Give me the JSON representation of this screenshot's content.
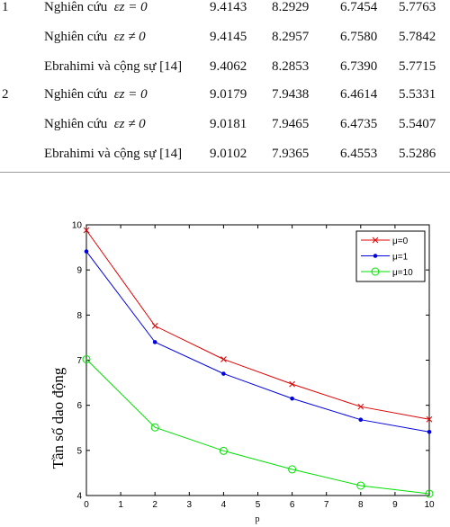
{
  "table": {
    "rows": [
      {
        "case": "1",
        "method_text": "Nghiên cứu",
        "condition": "εz = 0",
        "values": [
          "9.4143",
          "8.2929",
          "6.7454",
          "5.7763"
        ]
      },
      {
        "case": "",
        "method_text": "Nghiên cứu",
        "condition": "εz ≠ 0",
        "values": [
          "9.4145",
          "8.2957",
          "6.7580",
          "5.7842"
        ]
      },
      {
        "case": "",
        "method_text": "Ebrahimi và cộng sự [14]",
        "condition": "",
        "values": [
          "9.4062",
          "8.2853",
          "6.7390",
          "5.7715"
        ]
      },
      {
        "case": "2",
        "method_text": "Nghiên cứu",
        "condition": "εz = 0",
        "values": [
          "9.0179",
          "7.9438",
          "6.4614",
          "5.5331"
        ]
      },
      {
        "case": "",
        "method_text": "Nghiên cứu",
        "condition": "εz ≠ 0",
        "values": [
          "9.0181",
          "7.9465",
          "6.4735",
          "5.5407"
        ]
      },
      {
        "case": "",
        "method_text": "Ebrahimi và cộng sự [14]",
        "condition": "",
        "values": [
          "9.0102",
          "7.9365",
          "6.4553",
          "5.5286"
        ]
      }
    ]
  },
  "chart_data": {
    "type": "line",
    "xlabel": "p",
    "ylabel": "Tần số dao động",
    "xlim": [
      0,
      10
    ],
    "ylim": [
      4,
      10
    ],
    "xticks": [
      "0",
      "1",
      "2",
      "3",
      "4",
      "5",
      "6",
      "7",
      "8",
      "9",
      "10"
    ],
    "yticks": [
      "4",
      "5",
      "6",
      "7",
      "8",
      "9",
      "10"
    ],
    "legend_position": "top-right",
    "grid": false,
    "x": [
      0,
      2,
      4,
      6,
      8,
      10
    ],
    "series": [
      {
        "name": "μ=0",
        "color": "#e00000",
        "marker": "x",
        "values": [
          9.88,
          7.76,
          7.02,
          6.47,
          5.97,
          5.69
        ]
      },
      {
        "name": "μ=1",
        "color": "#0000e0",
        "marker": "dot",
        "values": [
          9.41,
          7.4,
          6.7,
          6.15,
          5.68,
          5.41
        ]
      },
      {
        "name": "μ=10",
        "color": "#00e000",
        "marker": "circle",
        "values": [
          7.02,
          5.51,
          4.99,
          4.58,
          4.22,
          4.04
        ]
      }
    ]
  }
}
